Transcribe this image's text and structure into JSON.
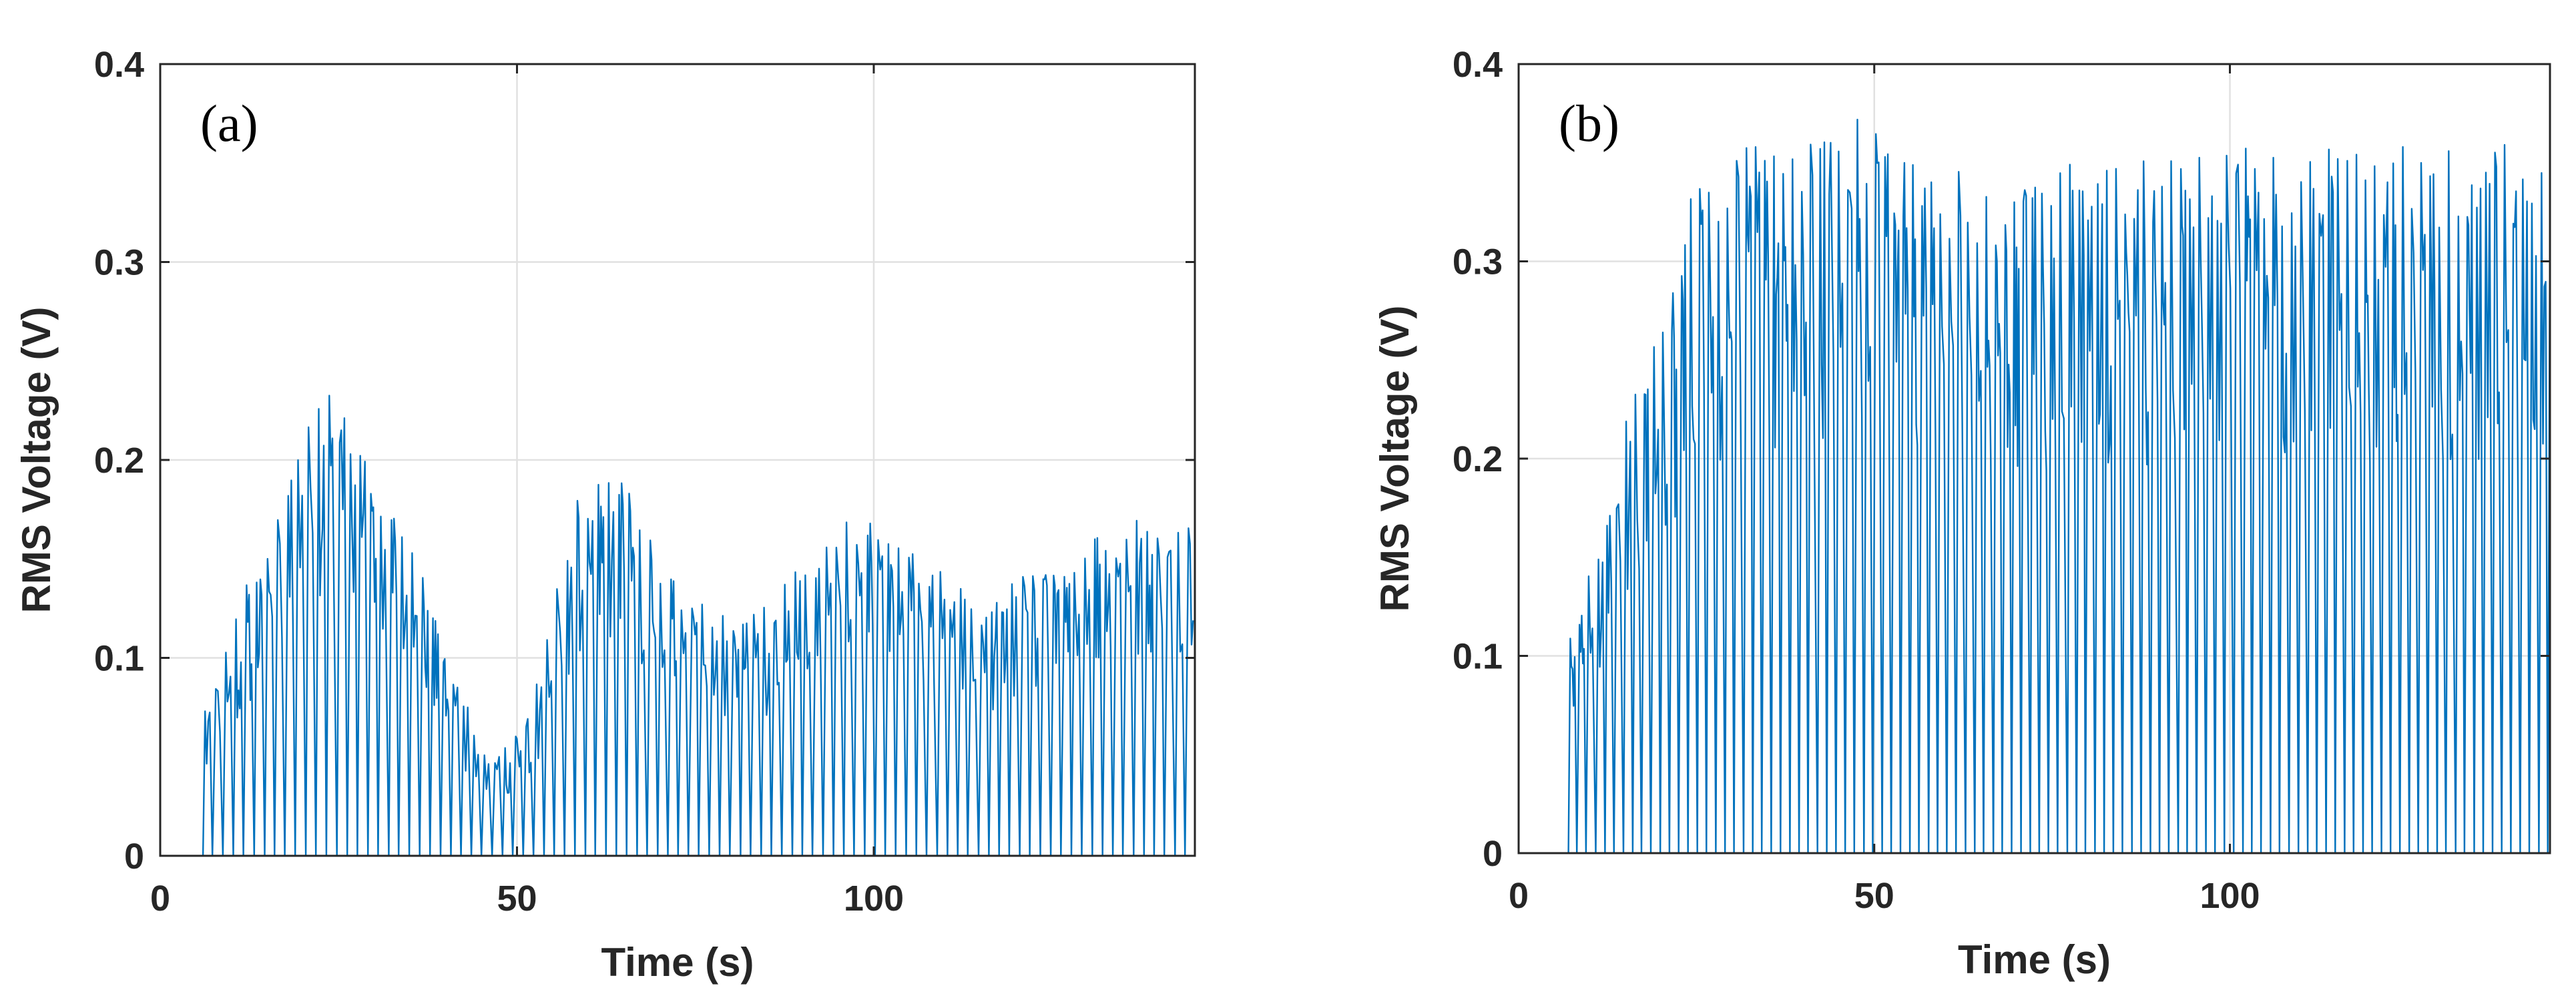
{
  "chart_data": [
    {
      "type": "line",
      "panel_label": "(a)",
      "xlabel": "Time (s)",
      "ylabel": "RMS Voltage (V)",
      "xlim": [
        0,
        145
      ],
      "ylim": [
        0,
        0.4
      ],
      "xticks": [
        0,
        50,
        100
      ],
      "xtick_labels": [
        "0",
        "50",
        "100"
      ],
      "yticks": [
        0,
        0.1,
        0.2,
        0.3,
        0.4
      ],
      "ytick_labels": [
        "0",
        "0.1",
        "0.2",
        "0.3",
        "0.4"
      ],
      "grid": true,
      "series_color": "#0072BD",
      "signal": {
        "t_start": 6,
        "dip_period_s": 1.45,
        "envelope": [
          [
            6,
            0.08
          ],
          [
            10,
            0.12
          ],
          [
            14,
            0.16
          ],
          [
            18,
            0.2
          ],
          [
            21,
            0.235
          ],
          [
            25,
            0.232
          ],
          [
            30,
            0.2
          ],
          [
            35,
            0.16
          ],
          [
            38,
            0.13
          ],
          [
            40,
            0.1
          ],
          [
            43,
            0.07
          ],
          [
            46,
            0.05
          ],
          [
            49,
            0.06
          ],
          [
            52,
            0.08
          ],
          [
            55,
            0.14
          ],
          [
            58,
            0.18
          ],
          [
            62,
            0.19
          ],
          [
            64,
            0.2
          ],
          [
            66,
            0.18
          ],
          [
            70,
            0.15
          ],
          [
            75,
            0.13
          ],
          [
            80,
            0.12
          ],
          [
            85,
            0.13
          ],
          [
            90,
            0.15
          ],
          [
            95,
            0.18
          ],
          [
            100,
            0.175
          ],
          [
            105,
            0.16
          ],
          [
            110,
            0.14
          ],
          [
            115,
            0.13
          ],
          [
            120,
            0.14
          ],
          [
            125,
            0.15
          ],
          [
            130,
            0.165
          ],
          [
            135,
            0.17
          ],
          [
            140,
            0.17
          ],
          [
            145,
            0.17
          ]
        ]
      }
    },
    {
      "type": "line",
      "panel_label": "(b)",
      "xlabel": "Time (s)",
      "ylabel": "RMS Voltage (V)",
      "xlim": [
        0,
        145
      ],
      "ylim": [
        0,
        0.4
      ],
      "xticks": [
        0,
        50,
        100
      ],
      "xtick_labels": [
        "0",
        "50",
        "100"
      ],
      "yticks": [
        0,
        0.1,
        0.2,
        0.3,
        0.4
      ],
      "ytick_labels": [
        "0",
        "0.1",
        "0.2",
        "0.3",
        "0.4"
      ],
      "grid": true,
      "series_color": "#0072BD",
      "signal": {
        "t_start": 7,
        "dip_period_s": 1.3,
        "envelope": [
          [
            7,
            0.11
          ],
          [
            10,
            0.15
          ],
          [
            13,
            0.19
          ],
          [
            16,
            0.24
          ],
          [
            20,
            0.27
          ],
          [
            23,
            0.33
          ],
          [
            27,
            0.36
          ],
          [
            32,
            0.365
          ],
          [
            38,
            0.37
          ],
          [
            43,
            0.375
          ],
          [
            48,
            0.375
          ],
          [
            53,
            0.365
          ],
          [
            58,
            0.355
          ],
          [
            65,
            0.35
          ],
          [
            75,
            0.35
          ],
          [
            90,
            0.355
          ],
          [
            100,
            0.36
          ],
          [
            110,
            0.36
          ],
          [
            120,
            0.36
          ],
          [
            130,
            0.36
          ],
          [
            140,
            0.36
          ],
          [
            145,
            0.355
          ]
        ]
      }
    }
  ]
}
